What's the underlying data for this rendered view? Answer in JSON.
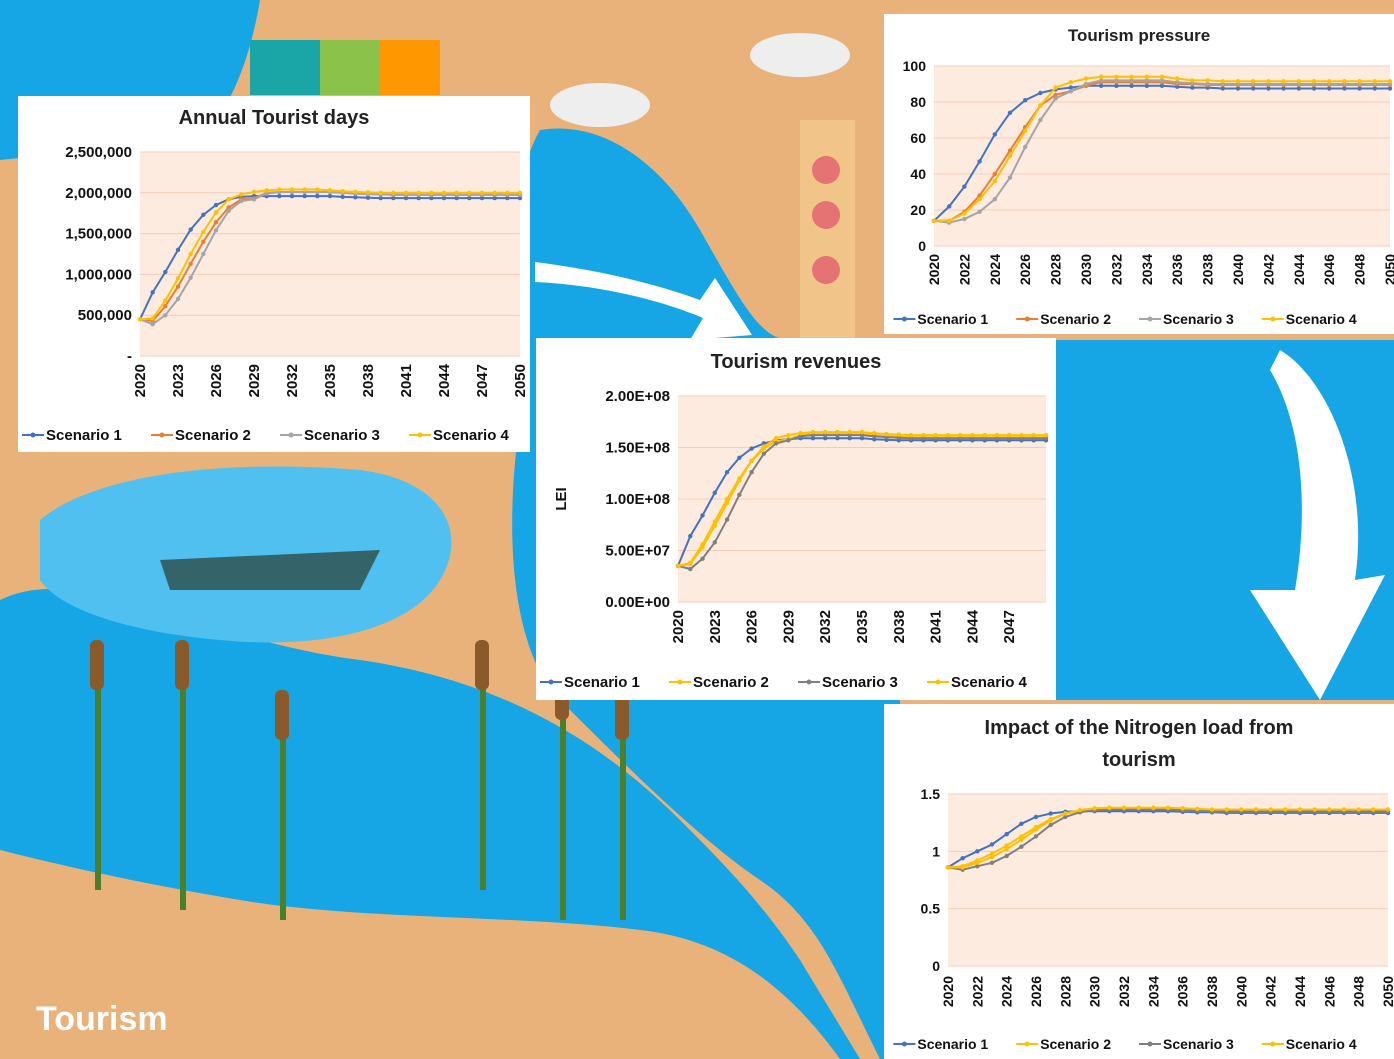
{
  "scene": {
    "label": "Tourism",
    "colors": {
      "sand": "#e9b27a",
      "water": "#16a6e6",
      "plot_bg": "#fdebdf",
      "white": "#ffffff"
    }
  },
  "chart_data": [
    {
      "id": "tourist-days",
      "type": "line",
      "title": "Annual Tourist days",
      "xlabel": "",
      "ylabel": "",
      "x_start": 2020,
      "x_end": 2050,
      "x_tick_step": 3,
      "ylim": [
        0,
        2500000
      ],
      "y_ticks": [
        0,
        500000,
        1000000,
        1500000,
        2000000,
        2500000
      ],
      "y_tick_labels": [
        "-",
        "500,000",
        "1,000,000",
        "1,500,000",
        "2,000,000",
        "2,500,000"
      ],
      "grid": true,
      "legend": "bottom",
      "series": [
        {
          "name": "Scenario 1",
          "color": "#4472c4",
          "values": [
            450000,
            780000,
            1030000,
            1300000,
            1550000,
            1730000,
            1850000,
            1920000,
            1950000,
            1960000,
            1960000,
            1960000,
            1960000,
            1960000,
            1960000,
            1960000,
            1950000,
            1945000,
            1940000,
            1935000,
            1935000,
            1935000,
            1935000,
            1935000,
            1935000,
            1935000,
            1935000,
            1935000,
            1935000,
            1935000,
            1935000
          ]
        },
        {
          "name": "Scenario 2",
          "color": "#ed7d31",
          "values": [
            450000,
            430000,
            610000,
            850000,
            1130000,
            1400000,
            1640000,
            1820000,
            1920000,
            1930000,
            2000000,
            2010000,
            2010000,
            2010000,
            2010000,
            2010000,
            2000000,
            1990000,
            1985000,
            1980000,
            1975000,
            1975000,
            1975000,
            1975000,
            1975000,
            1975000,
            1975000,
            1975000,
            1975000,
            1975000,
            1975000
          ]
        },
        {
          "name": "Scenario 3",
          "color": "#a5a5a5",
          "values": [
            450000,
            390000,
            500000,
            700000,
            960000,
            1250000,
            1540000,
            1780000,
            1900000,
            1920000,
            1990000,
            2010000,
            2010000,
            2010000,
            2010000,
            2010000,
            2000000,
            1990000,
            1985000,
            1980000,
            1975000,
            1975000,
            1975000,
            1975000,
            1975000,
            1975000,
            1975000,
            1975000,
            1975000,
            1975000,
            1975000
          ]
        },
        {
          "name": "Scenario 4",
          "color": "#ffc000",
          "values": [
            450000,
            460000,
            680000,
            950000,
            1250000,
            1520000,
            1760000,
            1920000,
            1980000,
            2010000,
            2030000,
            2040000,
            2040000,
            2040000,
            2040000,
            2030000,
            2020000,
            2010000,
            2005000,
            2000000,
            2000000,
            2000000,
            2000000,
            2000000,
            2000000,
            2000000,
            2000000,
            2000000,
            2000000,
            2000000,
            2000000
          ]
        }
      ]
    },
    {
      "id": "tourism-pressure",
      "type": "line",
      "title": "Tourism pressure",
      "xlabel": "",
      "ylabel": "",
      "x_start": 2020,
      "x_end": 2050,
      "x_tick_step": 2,
      "ylim": [
        0,
        100
      ],
      "y_ticks": [
        0,
        20,
        40,
        60,
        80,
        100
      ],
      "y_tick_labels": [
        "0",
        "20",
        "40",
        "60",
        "80",
        "100"
      ],
      "grid": true,
      "legend": "bottom",
      "series": [
        {
          "name": "Scenario 1",
          "color": "#4472c4",
          "values": [
            14,
            22,
            33,
            47,
            62,
            74,
            81,
            85,
            87,
            88,
            89,
            89,
            89,
            89,
            89,
            89,
            88.5,
            88,
            88,
            87.5,
            87.5,
            87.5,
            87.5,
            87.5,
            87.5,
            87.5,
            87.5,
            87.5,
            87.5,
            87.5,
            87.5
          ]
        },
        {
          "name": "Scenario 2",
          "color": "#ed7d31",
          "values": [
            14,
            14,
            19,
            28,
            40,
            53,
            66,
            78,
            84,
            86,
            89,
            91,
            91,
            91,
            91,
            91,
            90,
            90,
            89.5,
            89.5,
            89.5,
            89.5,
            89.5,
            89.5,
            89.5,
            89.5,
            89.5,
            89.5,
            89.5,
            89.5,
            89.5
          ]
        },
        {
          "name": "Scenario 3",
          "color": "#a5a5a5",
          "values": [
            14,
            13,
            15,
            19,
            26,
            38,
            55,
            70,
            82,
            86,
            90,
            92,
            92,
            92,
            92,
            92,
            91,
            90.5,
            90,
            90,
            90,
            90,
            90,
            90,
            90,
            90,
            90,
            90,
            90,
            90,
            90
          ]
        },
        {
          "name": "Scenario 4",
          "color": "#ffc000",
          "values": [
            14,
            14,
            18,
            26,
            36,
            50,
            64,
            78,
            88,
            91,
            93,
            94,
            94,
            94,
            94,
            94,
            93,
            92,
            92,
            91.5,
            91.5,
            91.5,
            91.5,
            91.5,
            91.5,
            91.5,
            91.5,
            91.5,
            91.5,
            91.5,
            91.5
          ]
        }
      ]
    },
    {
      "id": "tourism-revenues",
      "type": "line",
      "title": "Tourism revenues",
      "xlabel": "",
      "ylabel": "LEI",
      "x_start": 2020,
      "x_end": 2050,
      "x_tick_step": 3,
      "x_tick_max": 2048,
      "ylim": [
        0,
        200000000
      ],
      "y_ticks": [
        0,
        50000000,
        100000000,
        150000000,
        200000000
      ],
      "y_tick_labels": [
        "0.00E+00",
        "5.00E+07",
        "1.00E+08",
        "1.50E+08",
        "2.00E+08"
      ],
      "grid": true,
      "legend": "bottom",
      "series": [
        {
          "name": "Scenario 1",
          "color": "#4472c4",
          "values": [
            35000000,
            64000000,
            84000000,
            106000000,
            126000000,
            140000000,
            149000000,
            154000000,
            157000000,
            158000000,
            159000000,
            159000000,
            159000000,
            159000000,
            159000000,
            159000000,
            158000000,
            157500000,
            157000000,
            157000000,
            157000000,
            157000000,
            157000000,
            157000000,
            157000000,
            157000000,
            157000000,
            157000000,
            157000000,
            157000000,
            157000000
          ]
        },
        {
          "name": "Scenario 2",
          "color": "#ffc000",
          "values": [
            35000000,
            38000000,
            56000000,
            78000000,
            100000000,
            120000000,
            137000000,
            149000000,
            156000000,
            158000000,
            162000000,
            163000000,
            163000000,
            163000000,
            163000000,
            163000000,
            162000000,
            161000000,
            160500000,
            160000000,
            160000000,
            160000000,
            160000000,
            160000000,
            160000000,
            160000000,
            160000000,
            160000000,
            160000000,
            160000000,
            160000000
          ]
        },
        {
          "name": "Scenario 3",
          "color": "#808080",
          "values": [
            35000000,
            32000000,
            42000000,
            58000000,
            80000000,
            104000000,
            126000000,
            144000000,
            154000000,
            157000000,
            161000000,
            162000000,
            162000000,
            162000000,
            162000000,
            162000000,
            161000000,
            160000000,
            159500000,
            159000000,
            159000000,
            159000000,
            159000000,
            159000000,
            159000000,
            159000000,
            159000000,
            159000000,
            159000000,
            159000000,
            159000000
          ]
        },
        {
          "name": "Scenario 4",
          "color": "#ffc000",
          "values": [
            35000000,
            37000000,
            53000000,
            74000000,
            96000000,
            118000000,
            137000000,
            151000000,
            159000000,
            162000000,
            164000000,
            165000000,
            165000000,
            165000000,
            165000000,
            165000000,
            164000000,
            163000000,
            162500000,
            162000000,
            162000000,
            162000000,
            162000000,
            162000000,
            162000000,
            162000000,
            162000000,
            162000000,
            162000000,
            162000000,
            162000000
          ]
        }
      ]
    },
    {
      "id": "nitrogen-impact",
      "type": "line",
      "title": "Impact of the Nitrogen load from tourism",
      "title_lines": [
        "Impact of the Nitrogen load from",
        "tourism"
      ],
      "xlabel": "",
      "ylabel": "",
      "x_start": 2020,
      "x_end": 2050,
      "x_tick_step": 2,
      "ylim": [
        0,
        1.5
      ],
      "y_ticks": [
        0,
        0.5,
        1,
        1.5
      ],
      "y_tick_labels": [
        "0",
        "0.5",
        "1",
        "1.5"
      ],
      "grid": true,
      "legend": "bottom",
      "series": [
        {
          "name": "Scenario 1",
          "color": "#4472c4",
          "values": [
            0.86,
            0.94,
            1.0,
            1.06,
            1.15,
            1.24,
            1.3,
            1.33,
            1.345,
            1.35,
            1.35,
            1.35,
            1.35,
            1.35,
            1.35,
            1.35,
            1.345,
            1.34,
            1.34,
            1.335,
            1.335,
            1.335,
            1.335,
            1.335,
            1.335,
            1.335,
            1.335,
            1.335,
            1.335,
            1.335,
            1.335
          ]
        },
        {
          "name": "Scenario 2",
          "color": "#ffc000",
          "values": [
            0.86,
            0.87,
            0.92,
            0.98,
            1.05,
            1.13,
            1.21,
            1.28,
            1.33,
            1.35,
            1.36,
            1.37,
            1.37,
            1.37,
            1.37,
            1.37,
            1.36,
            1.355,
            1.35,
            1.35,
            1.35,
            1.35,
            1.35,
            1.35,
            1.35,
            1.35,
            1.35,
            1.35,
            1.35,
            1.35,
            1.35
          ]
        },
        {
          "name": "Scenario 3",
          "color": "#808080",
          "values": [
            0.86,
            0.84,
            0.87,
            0.9,
            0.96,
            1.04,
            1.13,
            1.23,
            1.3,
            1.34,
            1.36,
            1.365,
            1.365,
            1.365,
            1.365,
            1.365,
            1.36,
            1.355,
            1.35,
            1.35,
            1.35,
            1.35,
            1.35,
            1.35,
            1.35,
            1.35,
            1.35,
            1.35,
            1.35,
            1.35,
            1.35
          ]
        },
        {
          "name": "Scenario 4",
          "color": "#ffc000",
          "values": [
            0.86,
            0.86,
            0.9,
            0.95,
            1.02,
            1.1,
            1.19,
            1.27,
            1.33,
            1.36,
            1.375,
            1.38,
            1.38,
            1.38,
            1.38,
            1.38,
            1.375,
            1.37,
            1.365,
            1.365,
            1.365,
            1.365,
            1.365,
            1.365,
            1.365,
            1.365,
            1.365,
            1.365,
            1.365,
            1.365,
            1.365
          ]
        }
      ]
    }
  ]
}
